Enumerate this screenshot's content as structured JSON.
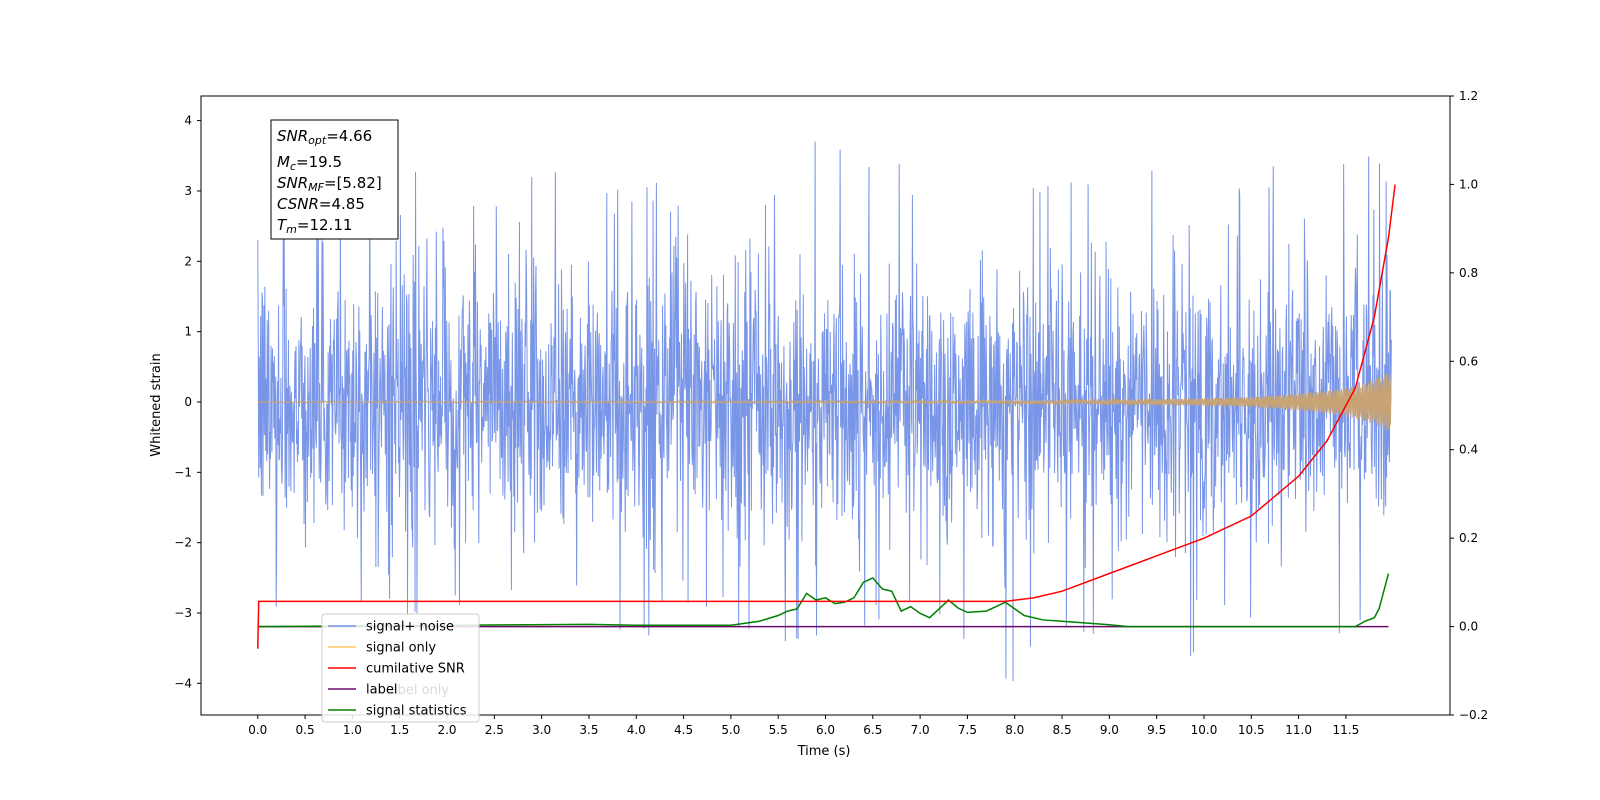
{
  "chart_data": {
    "type": "line",
    "xlabel": "Time (s)",
    "ylabel": "Whitened strain",
    "xlim": [
      -0.6,
      12.6
    ],
    "ylim": [
      -4.45,
      4.35
    ],
    "y2lim": [
      -0.2,
      1.2
    ],
    "x_ticks": [
      "0.0",
      "0.5",
      "1.0",
      "1.5",
      "2.0",
      "2.5",
      "3.0",
      "3.5",
      "4.0",
      "4.5",
      "5.0",
      "5.5",
      "6.0",
      "6.5",
      "7.0",
      "7.5",
      "8.0",
      "8.5",
      "9.0",
      "9.5",
      "10.0",
      "10.5",
      "11.0",
      "11.5"
    ],
    "y_ticks": [
      "4",
      "3",
      "2",
      "1",
      "0",
      "−1",
      "−2",
      "−3",
      "−4"
    ],
    "y2_ticks": [
      "1.2",
      "1.0",
      "0.8",
      "0.6",
      "0.4",
      "0.2",
      "0.0",
      "−0.2"
    ],
    "stats_box": {
      "snr_opt": {
        "name": "SNR",
        "sub": "opt",
        "value": "=4.66"
      },
      "mc": {
        "name": "M",
        "sub": "c",
        "value": "=19.5"
      },
      "snr_mf": {
        "name": "SNR",
        "sub": "MF",
        "value": "=[5.82]"
      },
      "csnr": {
        "name": "CSNR",
        "sub": "",
        "value": "=4.85"
      },
      "tm": {
        "name": "T",
        "sub": "m",
        "value": "=12.11"
      }
    },
    "legend": {
      "placement": "lower-left",
      "entries": [
        "signal+ noise",
        "signal only",
        "cumilative SNR",
        "label",
        "signal statistics"
      ],
      "ghost_text": "label only"
    },
    "series": [
      {
        "name": "signal+ noise",
        "axis": "left",
        "color": "#7895e8",
        "envelope_t": [
          0.0,
          0.5,
          1.0,
          1.5,
          2.0,
          2.5,
          3.0,
          3.5,
          4.0,
          4.5,
          5.0,
          5.5,
          6.0,
          6.5,
          7.0,
          7.5,
          8.0,
          8.5,
          9.0,
          9.5,
          10.0,
          10.5,
          11.0,
          11.5,
          12.0
        ],
        "envelope_high": [
          2.3,
          3.0,
          3.0,
          3.55,
          3.0,
          3.0,
          3.9,
          3.1,
          3.1,
          3.2,
          3.4,
          3.1,
          3.9,
          3.55,
          3.7,
          3.3,
          3.3,
          3.3,
          3.2,
          3.3,
          3.3,
          3.4,
          3.5,
          3.9,
          3.4
        ],
        "envelope_low": [
          -3.3,
          -3.1,
          -3.1,
          -3.2,
          -3.3,
          -3.1,
          -3.2,
          -3.1,
          -3.4,
          -3.1,
          -3.2,
          -3.6,
          -3.9,
          -3.3,
          -3.2,
          -3.5,
          -4.1,
          -3.5,
          -3.2,
          -4.0,
          -3.5,
          -3.3,
          -3.6,
          -3.3,
          -3.5
        ]
      },
      {
        "name": "signal only",
        "axis": "left",
        "color": "#c8a373",
        "amplitude_t": [
          0.0,
          7.0,
          8.0,
          9.0,
          10.0,
          10.5,
          11.0,
          11.5,
          11.8,
          12.0
        ],
        "amplitude": [
          0.01,
          0.015,
          0.02,
          0.03,
          0.05,
          0.07,
          0.12,
          0.2,
          0.32,
          0.45
        ]
      },
      {
        "name": "cumilative SNR",
        "axis": "right",
        "color": "#ff0000",
        "x": [
          0.0,
          0.01,
          2.0,
          4.0,
          6.0,
          7.9,
          8.2,
          8.5,
          9.0,
          9.5,
          10.0,
          10.5,
          11.0,
          11.3,
          11.6,
          11.8,
          11.95,
          12.02
        ],
        "values": [
          -0.05,
          0.057,
          0.057,
          0.057,
          0.057,
          0.057,
          0.065,
          0.08,
          0.12,
          0.16,
          0.2,
          0.25,
          0.34,
          0.42,
          0.54,
          0.7,
          0.88,
          1.0
        ]
      },
      {
        "name": "label",
        "axis": "right",
        "color": "#6a0a6a",
        "x": [
          0.0,
          11.95
        ],
        "values": [
          0.0,
          0.0
        ]
      },
      {
        "name": "signal statistics",
        "axis": "right",
        "color": "#008000",
        "x": [
          0.0,
          3.5,
          4.0,
          5.0,
          5.3,
          5.5,
          5.6,
          5.7,
          5.8,
          5.9,
          6.0,
          6.1,
          6.2,
          6.3,
          6.4,
          6.5,
          6.6,
          6.7,
          6.8,
          6.9,
          7.0,
          7.1,
          7.2,
          7.3,
          7.4,
          7.5,
          7.7,
          7.8,
          7.9,
          8.0,
          8.1,
          8.3,
          8.5,
          9.0,
          9.2,
          11.6,
          11.7,
          11.8,
          11.85,
          11.9,
          11.95
        ],
        "values": [
          0.0,
          0.005,
          0.003,
          0.003,
          0.012,
          0.025,
          0.035,
          0.04,
          0.075,
          0.06,
          0.065,
          0.052,
          0.055,
          0.065,
          0.1,
          0.11,
          0.085,
          0.08,
          0.035,
          0.045,
          0.03,
          0.02,
          0.04,
          0.06,
          0.042,
          0.032,
          0.035,
          0.045,
          0.055,
          0.04,
          0.025,
          0.015,
          0.012,
          0.004,
          0.0,
          0.0,
          0.012,
          0.02,
          0.04,
          0.08,
          0.12
        ]
      }
    ]
  }
}
